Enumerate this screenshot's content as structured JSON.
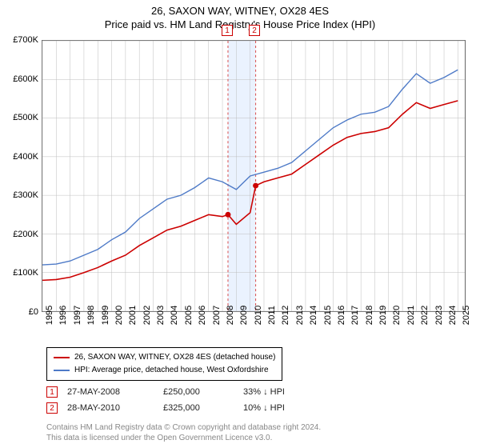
{
  "title": {
    "line1": "26, SAXON WAY, WITNEY, OX28 4ES",
    "line2": "Price paid vs. HM Land Registry's House Price Index (HPI)"
  },
  "chart": {
    "type": "line",
    "xlim": [
      1995,
      2025.5
    ],
    "ylim": [
      0,
      700000
    ],
    "yticks": [
      0,
      100000,
      200000,
      300000,
      400000,
      500000,
      600000,
      700000
    ],
    "ytick_labels": [
      "£0",
      "£100K",
      "£200K",
      "£300K",
      "£400K",
      "£500K",
      "£600K",
      "£700K"
    ],
    "xticks": [
      1995,
      1996,
      1997,
      1998,
      1999,
      2000,
      2001,
      2002,
      2003,
      2004,
      2005,
      2006,
      2007,
      2008,
      2009,
      2010,
      2011,
      2012,
      2013,
      2014,
      2015,
      2016,
      2017,
      2018,
      2019,
      2020,
      2021,
      2022,
      2023,
      2024,
      2025
    ],
    "grid_color": "#bdbdbd",
    "background_color": "#ffffff",
    "border_color": "#666666",
    "band": {
      "from": 2008.4,
      "to": 2010.4,
      "fill": "#eaf2fe"
    },
    "series": [
      {
        "name": "26, SAXON WAY, WITNEY, OX28 4ES (detached house)",
        "color": "#cc0000",
        "width": 1.6,
        "points": [
          [
            1995,
            80000
          ],
          [
            1996,
            82000
          ],
          [
            1997,
            88000
          ],
          [
            1998,
            100000
          ],
          [
            1999,
            113000
          ],
          [
            2000,
            130000
          ],
          [
            2001,
            145000
          ],
          [
            2002,
            170000
          ],
          [
            2003,
            190000
          ],
          [
            2004,
            210000
          ],
          [
            2005,
            220000
          ],
          [
            2006,
            235000
          ],
          [
            2007,
            250000
          ],
          [
            2008,
            245000
          ],
          [
            2008.4,
            250000
          ],
          [
            2009,
            225000
          ],
          [
            2010,
            255000
          ],
          [
            2010.4,
            325000
          ],
          [
            2011,
            335000
          ],
          [
            2012,
            345000
          ],
          [
            2013,
            355000
          ],
          [
            2014,
            380000
          ],
          [
            2015,
            405000
          ],
          [
            2016,
            430000
          ],
          [
            2017,
            450000
          ],
          [
            2018,
            460000
          ],
          [
            2019,
            465000
          ],
          [
            2020,
            475000
          ],
          [
            2021,
            510000
          ],
          [
            2022,
            540000
          ],
          [
            2023,
            525000
          ],
          [
            2024,
            535000
          ],
          [
            2025,
            545000
          ]
        ]
      },
      {
        "name": "HPI: Average price, detached house, West Oxfordshire",
        "color": "#4e7ac7",
        "width": 1.4,
        "points": [
          [
            1995,
            120000
          ],
          [
            1996,
            122000
          ],
          [
            1997,
            130000
          ],
          [
            1998,
            145000
          ],
          [
            1999,
            160000
          ],
          [
            2000,
            185000
          ],
          [
            2001,
            205000
          ],
          [
            2002,
            240000
          ],
          [
            2003,
            265000
          ],
          [
            2004,
            290000
          ],
          [
            2005,
            300000
          ],
          [
            2006,
            320000
          ],
          [
            2007,
            345000
          ],
          [
            2008,
            335000
          ],
          [
            2009,
            315000
          ],
          [
            2010,
            350000
          ],
          [
            2011,
            360000
          ],
          [
            2012,
            370000
          ],
          [
            2013,
            385000
          ],
          [
            2014,
            415000
          ],
          [
            2015,
            445000
          ],
          [
            2016,
            475000
          ],
          [
            2017,
            495000
          ],
          [
            2018,
            510000
          ],
          [
            2019,
            515000
          ],
          [
            2020,
            530000
          ],
          [
            2021,
            575000
          ],
          [
            2022,
            615000
          ],
          [
            2023,
            590000
          ],
          [
            2024,
            605000
          ],
          [
            2025,
            625000
          ]
        ]
      }
    ],
    "markers": [
      {
        "id": "1",
        "x": 2008.4,
        "y": 250000,
        "color": "#cc0000",
        "vline_color": "#d94a4a"
      },
      {
        "id": "2",
        "x": 2010.4,
        "y": 325000,
        "color": "#cc0000",
        "vline_color": "#d94a4a"
      }
    ]
  },
  "legend": {
    "rows": [
      {
        "color": "#cc0000",
        "label": "26, SAXON WAY, WITNEY, OX28 4ES (detached house)"
      },
      {
        "color": "#4e7ac7",
        "label": "HPI: Average price, detached house, West Oxfordshire"
      }
    ]
  },
  "sales": [
    {
      "id": "1",
      "date": "27-MAY-2008",
      "price": "£250,000",
      "diff": "33% ↓ HPI"
    },
    {
      "id": "2",
      "date": "28-MAY-2010",
      "price": "£325,000",
      "diff": "10% ↓ HPI"
    }
  ],
  "footnote": {
    "line1": "Contains HM Land Registry data © Crown copyright and database right 2024.",
    "line2": "This data is licensed under the Open Government Licence v3.0."
  }
}
